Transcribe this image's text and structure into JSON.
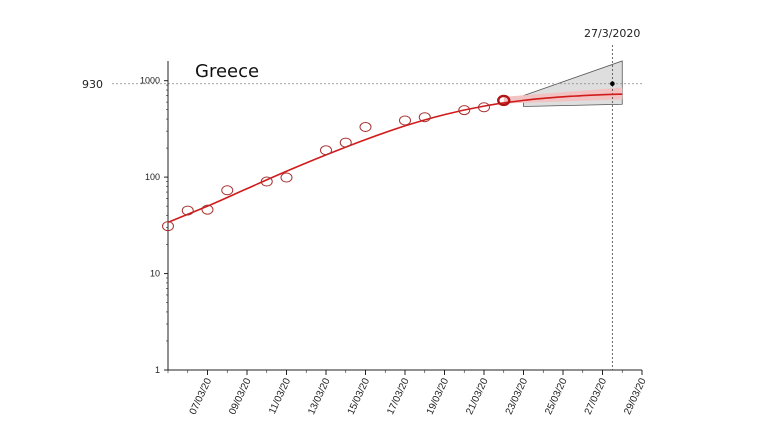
{
  "chart_data": {
    "type": "scatter",
    "title": "Greece",
    "y_scale": "log",
    "ylim": [
      1,
      1600
    ],
    "y_ticks": [
      1,
      10,
      100,
      1000
    ],
    "y_tick_labels": [
      "1",
      "10",
      "100",
      "1000"
    ],
    "x_tick_labels": [
      "07/03/20",
      "09/03/20",
      "11/03/20",
      "13/03/20",
      "15/03/20",
      "17/03/20",
      "19/03/20",
      "21/03/20",
      "23/03/20",
      "25/03/20",
      "27/03/20",
      "29/03/20"
    ],
    "xlim": [
      "2020-03-05",
      "2020-03-29"
    ],
    "reference_line_y": {
      "value": 930,
      "label": "930"
    },
    "reference_line_x": {
      "date": "2020-03-27 12:00",
      "label": "27/3/2020"
    },
    "observed_points": [
      {
        "date": "2020-03-05",
        "value": 31
      },
      {
        "date": "2020-03-06",
        "value": 45
      },
      {
        "date": "2020-03-07",
        "value": 46
      },
      {
        "date": "2020-03-08",
        "value": 73
      },
      {
        "date": "2020-03-10",
        "value": 90
      },
      {
        "date": "2020-03-11",
        "value": 99
      },
      {
        "date": "2020-03-13",
        "value": 190
      },
      {
        "date": "2020-03-14",
        "value": 228
      },
      {
        "date": "2020-03-15",
        "value": 331
      },
      {
        "date": "2020-03-17",
        "value": 387
      },
      {
        "date": "2020-03-18",
        "value": 418
      },
      {
        "date": "2020-03-20",
        "value": 495
      },
      {
        "date": "2020-03-21",
        "value": 530
      }
    ],
    "latest_point": {
      "date": "2020-03-22",
      "value": 624
    },
    "prediction_point": {
      "date": "2020-03-27 12:00",
      "value": 930
    },
    "fit_curve": [
      {
        "date": "2020-03-05",
        "value": 34
      },
      {
        "date": "2020-03-07",
        "value": 50
      },
      {
        "date": "2020-03-09",
        "value": 76
      },
      {
        "date": "2020-03-11",
        "value": 115
      },
      {
        "date": "2020-03-13",
        "value": 170
      },
      {
        "date": "2020-03-15",
        "value": 245
      },
      {
        "date": "2020-03-17",
        "value": 340
      },
      {
        "date": "2020-03-19",
        "value": 445
      },
      {
        "date": "2020-03-21",
        "value": 545
      },
      {
        "date": "2020-03-23",
        "value": 625
      },
      {
        "date": "2020-03-25",
        "value": 680
      },
      {
        "date": "2020-03-27",
        "value": 715
      },
      {
        "date": "2020-03-28",
        "value": 725
      }
    ],
    "forecast_band_outer": {
      "start_date": "2020-03-23",
      "end_date": "2020-03-28",
      "start_low": 540,
      "start_high": 700,
      "end_low": 570,
      "end_high": 1600
    },
    "forecast_band_inner": {
      "start_date": "2020-03-22",
      "end_date": "2020-03-28",
      "start_low": 580,
      "start_high": 680,
      "end_low": 640,
      "end_high": 850
    },
    "colors": {
      "fit": "#d11a1a",
      "points": "#a83232",
      "band_outer": "#dedede",
      "band_inner": "#f2c3c3",
      "axis": "#222222",
      "reference": "#888888"
    }
  }
}
